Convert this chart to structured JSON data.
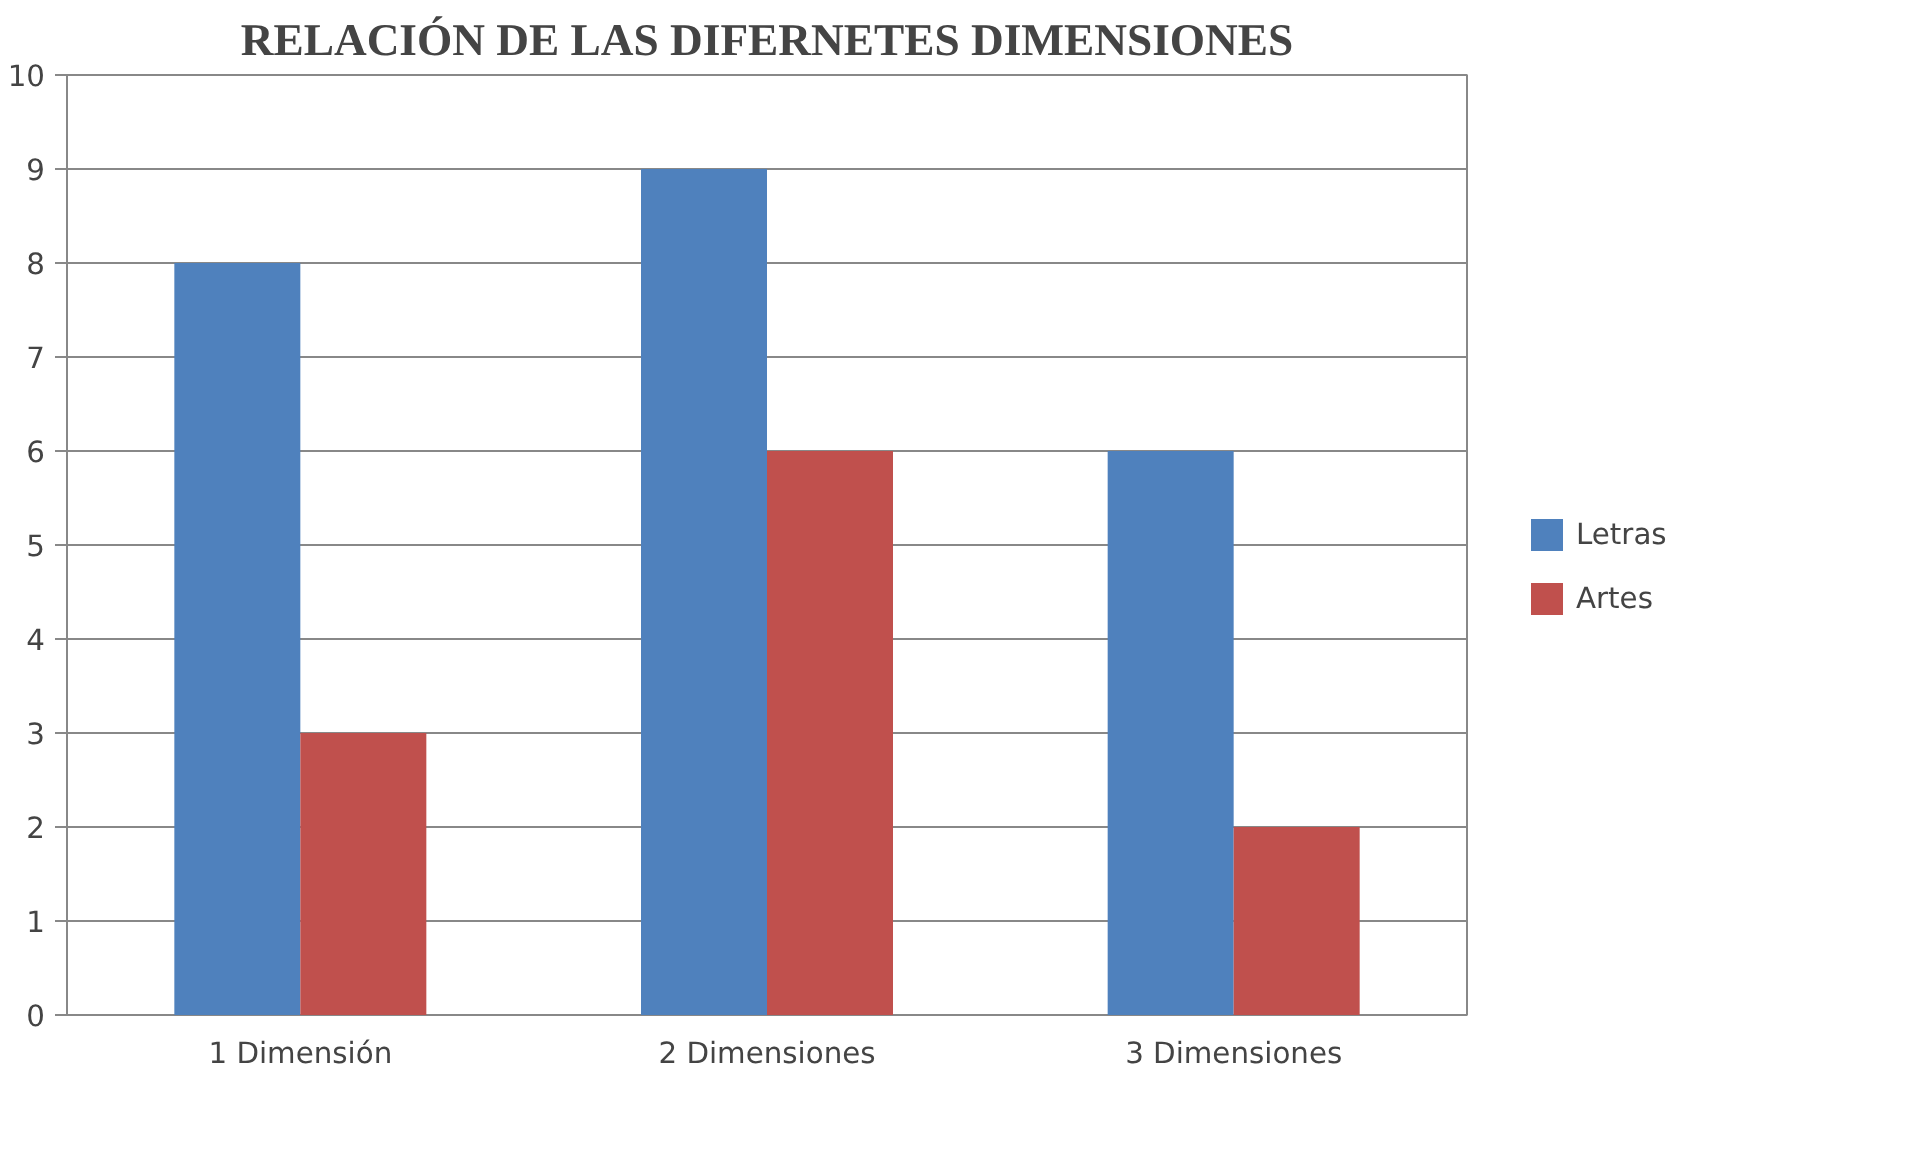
{
  "chart_data": {
    "type": "bar",
    "title": "RELACIÓN DE LAS DIFERNETES DIMENSIONES",
    "categories": [
      "1 Dimensión",
      "2 Dimensiones",
      "3 Dimensiones"
    ],
    "series": [
      {
        "name": "Letras",
        "color": "#4f81bd",
        "values": [
          8,
          9,
          6
        ]
      },
      {
        "name": "Artes",
        "color": "#c0504d",
        "values": [
          3,
          6,
          2
        ]
      }
    ],
    "ylim": [
      0,
      10
    ],
    "yticks": [
      0,
      1,
      2,
      3,
      4,
      5,
      6,
      7,
      8,
      9,
      10
    ],
    "grid": "y",
    "legend": "right"
  }
}
